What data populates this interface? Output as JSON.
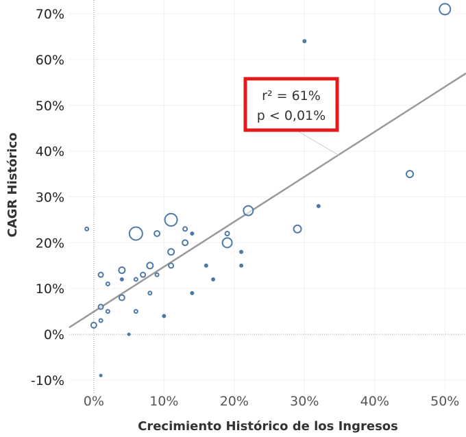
{
  "chart_data": {
    "type": "scatter",
    "xlabel": "Crecimiento Histórico de los Ingresos",
    "ylabel": "CAGR Histórico",
    "xlim": [
      -3.5,
      53
    ],
    "ylim": [
      -13,
      73
    ],
    "x_ticks": [
      0,
      10,
      20,
      30,
      40,
      50
    ],
    "y_ticks": [
      -10,
      0,
      10,
      20,
      30,
      40,
      50,
      60,
      70
    ],
    "x_tick_labels": [
      "0%",
      "10%",
      "20%",
      "30%",
      "40%",
      "50%"
    ],
    "y_tick_labels": [
      "-10%",
      "0%",
      "10%",
      "20%",
      "30%",
      "40%",
      "50%",
      "60%",
      "70%"
    ],
    "grid": true,
    "marker_color": "#4e79a7",
    "trendline": {
      "color": "#999999",
      "x": [
        -3.5,
        53
      ],
      "y": [
        1.5,
        57
      ]
    },
    "annotation": {
      "line1": "r² = 61%",
      "line2": "p < 0,01%",
      "border_color": "#e31a1c",
      "anchor": [
        35,
        39
      ]
    },
    "points": [
      {
        "x": 50,
        "y": 71,
        "size": 8
      },
      {
        "x": 30,
        "y": 64,
        "size": 2
      },
      {
        "x": 45,
        "y": 35,
        "size": 5
      },
      {
        "x": 32,
        "y": 28,
        "size": 2
      },
      {
        "x": 22,
        "y": 27,
        "size": 7
      },
      {
        "x": 29,
        "y": 23,
        "size": 5.5
      },
      {
        "x": 11,
        "y": 25,
        "size": 9
      },
      {
        "x": 6,
        "y": 22,
        "size": 9.5
      },
      {
        "x": 19,
        "y": 20,
        "size": 7
      },
      {
        "x": 19,
        "y": 22,
        "size": 3
      },
      {
        "x": 13,
        "y": 23,
        "size": 3
      },
      {
        "x": 14,
        "y": 22,
        "size": 2
      },
      {
        "x": 9,
        "y": 22,
        "size": 4
      },
      {
        "x": 13,
        "y": 20,
        "size": 4
      },
      {
        "x": 11,
        "y": 18,
        "size": 4.5
      },
      {
        "x": 21,
        "y": 18,
        "size": 2
      },
      {
        "x": 21,
        "y": 15,
        "size": 2
      },
      {
        "x": 16,
        "y": 15,
        "size": 2
      },
      {
        "x": 17,
        "y": 12,
        "size": 2
      },
      {
        "x": 8,
        "y": 15,
        "size": 4.5
      },
      {
        "x": 11,
        "y": 15,
        "size": 3.5
      },
      {
        "x": 4,
        "y": 14,
        "size": 4.5
      },
      {
        "x": 7,
        "y": 13,
        "size": 3.5
      },
      {
        "x": 9,
        "y": 13,
        "size": 2.5
      },
      {
        "x": 1,
        "y": 13,
        "size": 3.5
      },
      {
        "x": 6,
        "y": 12,
        "size": 2.5
      },
      {
        "x": 4,
        "y": 12,
        "size": 2
      },
      {
        "x": 2,
        "y": 11,
        "size": 2.5
      },
      {
        "x": 8,
        "y": 9,
        "size": 2.5
      },
      {
        "x": 14,
        "y": 9,
        "size": 2
      },
      {
        "x": 4,
        "y": 8,
        "size": 4
      },
      {
        "x": 1,
        "y": 6,
        "size": 3.5
      },
      {
        "x": 2,
        "y": 5,
        "size": 2.5
      },
      {
        "x": 6,
        "y": 5,
        "size": 2.5
      },
      {
        "x": 10,
        "y": 4,
        "size": 2
      },
      {
        "x": 1,
        "y": 3,
        "size": 2.5
      },
      {
        "x": 0,
        "y": 2,
        "size": 4
      },
      {
        "x": 5,
        "y": 0,
        "size": 1.5
      },
      {
        "x": -1,
        "y": 23,
        "size": 2.5
      },
      {
        "x": 1,
        "y": -9,
        "size": 1.5
      }
    ]
  }
}
